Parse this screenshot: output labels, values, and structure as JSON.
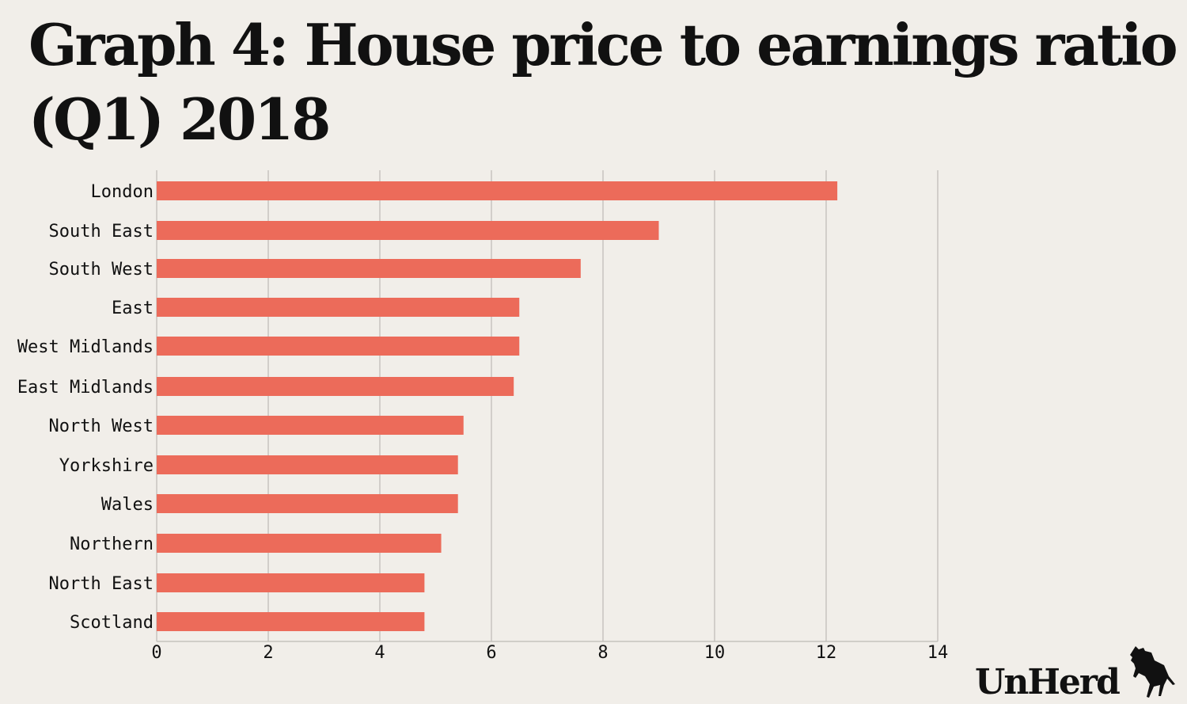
{
  "title": "Graph 4: House price to earnings ratio (Q1) 2018",
  "logo": "UnHerd",
  "colors": {
    "bar": "#ec6b5a",
    "grid": "#bdbab5",
    "background": "#f1eee9"
  },
  "chart_data": {
    "type": "bar",
    "orientation": "horizontal",
    "title": "Graph 4: House price to earnings ratio (Q1) 2018",
    "categories": [
      "London",
      "South East",
      "South West",
      "East",
      "West Midlands",
      "East Midlands",
      "North West",
      "Yorkshire",
      "Wales",
      "Northern",
      "North East",
      "Scotland"
    ],
    "values": [
      12.2,
      9.0,
      7.6,
      6.5,
      6.5,
      6.4,
      5.5,
      5.4,
      5.4,
      5.1,
      4.8,
      4.8
    ],
    "xlim": [
      0,
      14
    ],
    "xticks": [
      0,
      2,
      4,
      6,
      8,
      10,
      12,
      14
    ],
    "xlabel": "",
    "ylabel": "",
    "grid": true
  }
}
